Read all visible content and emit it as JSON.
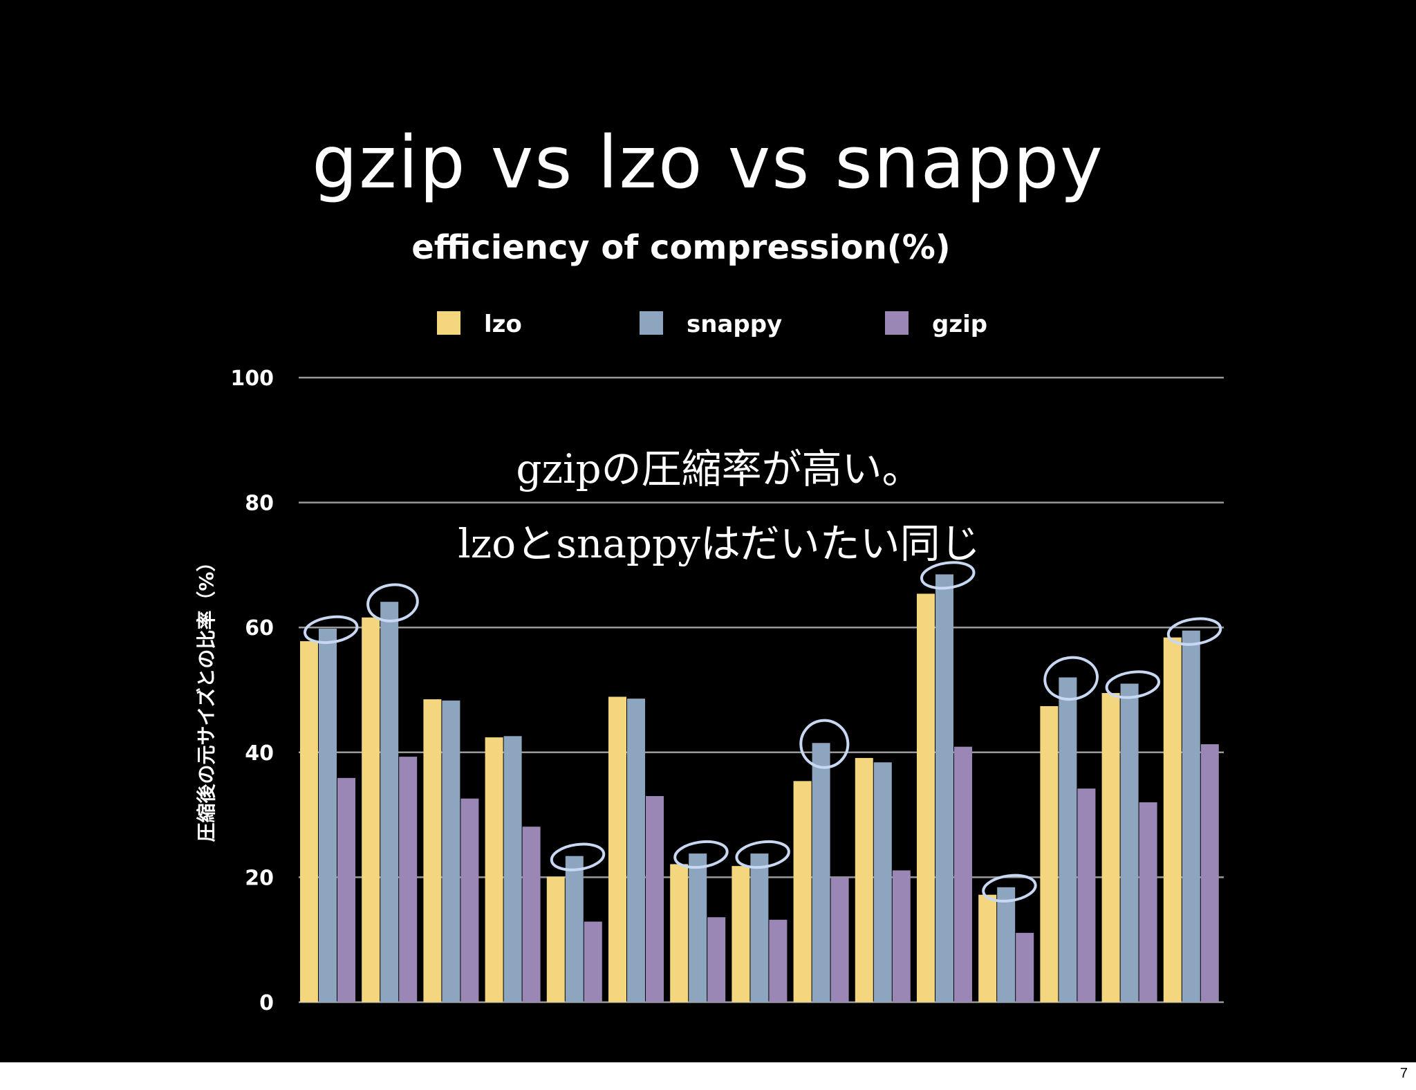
{
  "slide": {
    "title": "gzip vs lzo vs snappy",
    "page_number": "7"
  },
  "annotations": [
    "gzipの圧縮率が高い。",
    "lzoとsnappyはだいたい同じ"
  ],
  "colors": {
    "lzo": "#f4d67e",
    "snappy": "#8ea5bf",
    "gzip": "#9b87b5",
    "circle": "#c8d8f2",
    "grid": "#9a9a9a",
    "text": "#ffffff"
  },
  "chart_data": {
    "type": "bar",
    "title": "efficiency of compression(%)",
    "ylabel": "圧縮後の元サイズとの比率（%）",
    "xlabel": "",
    "ylim": [
      0,
      100
    ],
    "yticks": [
      "0",
      "20",
      "40",
      "60",
      "80",
      "100"
    ],
    "legend_position": "top-center",
    "grid": true,
    "series": [
      {
        "name": "lzo",
        "values": [
          57.8,
          61.6,
          48.5,
          42.4,
          20.1,
          48.9,
          22.1,
          21.8,
          35.4,
          39.1,
          65.4,
          17.2,
          47.4,
          49.5,
          58.4
        ]
      },
      {
        "name": "snappy",
        "values": [
          59.8,
          64.1,
          48.3,
          42.6,
          23.4,
          48.6,
          23.8,
          23.8,
          41.5,
          38.4,
          68.5,
          18.4,
          52.0,
          51.0,
          59.5
        ]
      },
      {
        "name": "gzip",
        "values": [
          35.9,
          39.3,
          32.6,
          28.1,
          12.9,
          33.0,
          13.6,
          13.2,
          20.0,
          21.1,
          40.9,
          11.1,
          34.2,
          32.0,
          41.3
        ]
      }
    ],
    "highlighted_circles": "snappy bar tops"
  }
}
